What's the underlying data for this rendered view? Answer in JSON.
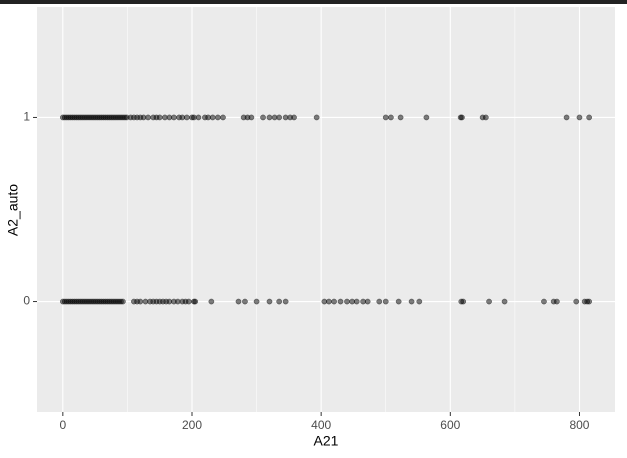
{
  "chart_data": {
    "type": "scatter",
    "xlabel": "A21",
    "ylabel": "A2_auto",
    "xlim": [
      -40,
      855
    ],
    "ylim": [
      -0.6,
      1.6
    ],
    "xticks": [
      0,
      200,
      400,
      600,
      800
    ],
    "yticks": [
      0,
      1
    ],
    "grid": true,
    "color": "#000000",
    "series": [
      {
        "x": [
          0,
          3,
          6,
          9,
          12,
          15,
          18,
          21,
          24,
          27,
          30,
          33,
          36,
          39,
          42,
          45,
          48,
          51,
          54,
          57,
          60,
          63,
          66,
          69,
          72,
          75,
          78,
          81,
          84,
          87,
          90,
          93,
          96,
          99,
          105,
          110,
          115,
          120,
          125,
          132,
          140,
          145,
          150,
          158,
          165,
          172,
          180,
          185,
          192,
          200,
          203,
          210,
          220,
          225,
          232,
          240,
          248,
          280,
          286,
          292,
          310,
          320,
          328,
          335,
          345,
          352,
          358,
          393,
          500,
          508,
          523,
          563,
          616,
          618,
          650,
          655,
          780,
          800,
          815
        ],
        "values": [
          1,
          1,
          1,
          1,
          1,
          1,
          1,
          1,
          1,
          1,
          1,
          1,
          1,
          1,
          1,
          1,
          1,
          1,
          1,
          1,
          1,
          1,
          1,
          1,
          1,
          1,
          1,
          1,
          1,
          1,
          1,
          1,
          1,
          1,
          1,
          1,
          1,
          1,
          1,
          1,
          1,
          1,
          1,
          1,
          1,
          1,
          1,
          1,
          1,
          1,
          1,
          1,
          1,
          1,
          1,
          1,
          1,
          1,
          1,
          1,
          1,
          1,
          1,
          1,
          1,
          1,
          1,
          1,
          1,
          1,
          1,
          1,
          1,
          1,
          1,
          1,
          1,
          1,
          1
        ]
      },
      {
        "x": [
          0,
          3,
          6,
          9,
          12,
          15,
          18,
          21,
          24,
          27,
          30,
          33,
          36,
          39,
          42,
          45,
          48,
          51,
          54,
          57,
          60,
          63,
          66,
          69,
          72,
          75,
          78,
          81,
          84,
          87,
          90,
          93,
          110,
          115,
          120,
          128,
          135,
          140,
          145,
          150,
          155,
          160,
          165,
          172,
          178,
          185,
          190,
          195,
          203,
          205,
          230,
          272,
          282,
          300,
          320,
          335,
          345,
          405,
          412,
          420,
          430,
          440,
          448,
          455,
          465,
          472,
          490,
          500,
          520,
          540,
          552,
          617,
          620,
          660,
          684,
          745,
          760,
          765,
          795,
          808,
          812,
          815
        ],
        "values": [
          0,
          0,
          0,
          0,
          0,
          0,
          0,
          0,
          0,
          0,
          0,
          0,
          0,
          0,
          0,
          0,
          0,
          0,
          0,
          0,
          0,
          0,
          0,
          0,
          0,
          0,
          0,
          0,
          0,
          0,
          0,
          0,
          0,
          0,
          0,
          0,
          0,
          0,
          0,
          0,
          0,
          0,
          0,
          0,
          0,
          0,
          0,
          0,
          0,
          0,
          0,
          0,
          0,
          0,
          0,
          0,
          0,
          0,
          0,
          0,
          0,
          0,
          0,
          0,
          0,
          0,
          0,
          0,
          0,
          0,
          0,
          0,
          0,
          0,
          0,
          0,
          0,
          0,
          0,
          0,
          0,
          0
        ]
      }
    ]
  }
}
